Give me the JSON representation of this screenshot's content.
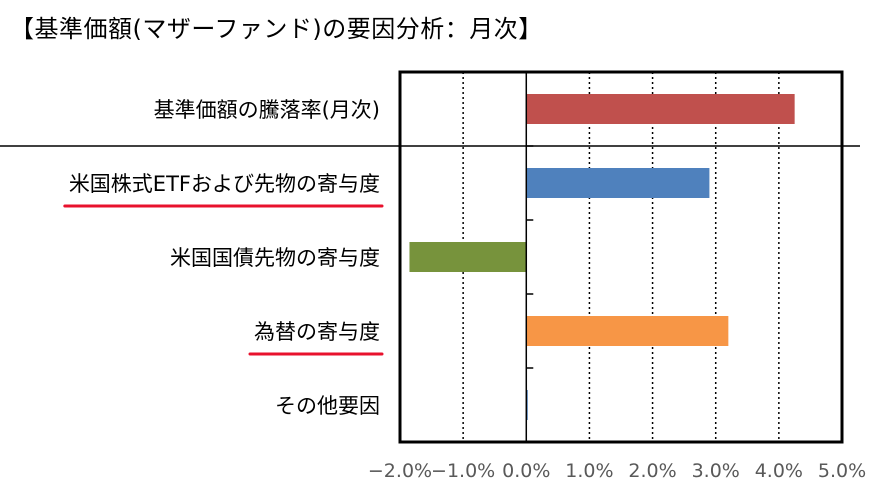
{
  "title": "【基準価額(マザーファンド)の要因分析：月次】",
  "chart_data": {
    "type": "bar",
    "orientation": "horizontal",
    "title": "【基準価額(マザーファンド)の要因分析：月次】",
    "xlabel": "",
    "ylabel": "",
    "categories": [
      "基準価額の騰落率(月次)",
      "米国株式ETFおよび先物の寄与度",
      "米国国債先物の寄与度",
      "為替の寄与度",
      "その他要因"
    ],
    "values": [
      4.25,
      2.9,
      -1.85,
      3.2,
      0.02
    ],
    "bar_colors": [
      "#c0504d",
      "#4f81bd",
      "#77933c",
      "#f79646",
      "#4f81bd"
    ],
    "xlim": [
      -2.0,
      5.0
    ],
    "xticks": [
      -2.0,
      -1.0,
      0.0,
      1.0,
      2.0,
      3.0,
      4.0,
      5.0
    ],
    "xtick_labels": [
      "−2.0%",
      "−1.0%",
      "0.0%",
      "1.0%",
      "2.0%",
      "3.0%",
      "4.0%",
      "5.0%"
    ],
    "grid": "vertical dotted",
    "underlined_categories": [
      "米国株式ETFおよび先物の寄与度",
      "為替の寄与度"
    ],
    "underline_color": "#e8112d"
  }
}
